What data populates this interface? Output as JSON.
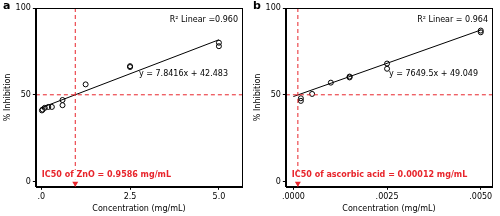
{
  "chart_data": [
    {
      "type": "scatter",
      "panel_label": "a",
      "x_label": "Concentration (mg/mL)",
      "y_label": "% Inhibition",
      "xlim": [
        -0.15,
        5.65
      ],
      "ylim": [
        -3,
        100
      ],
      "xticks": [
        {
          "value": 0,
          "label": ".0"
        },
        {
          "value": 2.5,
          "label": "2.5"
        },
        {
          "value": 5,
          "label": "5.0"
        }
      ],
      "yticks": [
        0,
        50,
        100
      ],
      "grid": false,
      "series": [
        {
          "type": "scatter",
          "marker": "circle",
          "color": "#000000",
          "x": [
            0.02,
            0.04,
            0.1,
            0.2,
            0.3,
            0.6,
            0.6,
            1.25,
            2.5,
            2.5,
            5,
            5
          ],
          "values": [
            41,
            41.5,
            42.5,
            43,
            43,
            44,
            47,
            56,
            66,
            66.5,
            78,
            80
          ]
        },
        {
          "type": "line",
          "line_style": "solid",
          "color": "#000000",
          "x": [
            0,
            5
          ],
          "values": [
            42.5,
            81.7
          ]
        }
      ],
      "reference_lines": [
        {
          "axis": "y",
          "value": 50,
          "color": "#e8242b",
          "line_style": "dashed"
        },
        {
          "axis": "x",
          "value": 0.9586,
          "color": "#e8242b",
          "line_style": "dashed"
        }
      ],
      "annotations": [
        {
          "text": "R² Linear =0.960",
          "color": "#000000"
        },
        {
          "text": "y = 7.8416x + 42.483",
          "color": "#000000"
        },
        {
          "text": "IC50 of ZnO = 0.9586 mg/mL",
          "color": "#e8242b"
        }
      ]
    },
    {
      "type": "scatter",
      "panel_label": "b",
      "x_label": "Concentration (mg/mL)",
      "y_label": "% Inhibition",
      "xlim": [
        -0.0002,
        0.0053
      ],
      "ylim": [
        -3,
        100
      ],
      "xticks": [
        {
          "value": 0,
          "label": ".0000"
        },
        {
          "value": 0.0025,
          "label": ".0025"
        },
        {
          "value": 0.005,
          "label": ".0050"
        }
      ],
      "yticks": [
        0,
        50,
        100
      ],
      "grid": false,
      "series": [
        {
          "type": "scatter",
          "marker": "circle",
          "color": "#000000",
          "x": [
            0.0002,
            0.0002,
            0.0005,
            0.001,
            0.0015,
            0.0015,
            0.0025,
            0.0025,
            0.005,
            0.005
          ],
          "values": [
            46.5,
            48,
            50.5,
            57,
            60,
            60.5,
            65,
            68,
            86,
            87
          ]
        },
        {
          "type": "line",
          "line_style": "solid",
          "color": "#000000",
          "x": [
            0,
            0.005
          ],
          "values": [
            49.0,
            87.3
          ]
        }
      ],
      "reference_lines": [
        {
          "axis": "y",
          "value": 50,
          "color": "#e8242b",
          "line_style": "dashed"
        },
        {
          "axis": "x",
          "value": 0.00012,
          "color": "#e8242b",
          "line_style": "dashed"
        }
      ],
      "annotations": [
        {
          "text": "R² Linear = 0.964",
          "color": "#000000"
        },
        {
          "text": "y = 7649.5x + 49.049",
          "color": "#000000"
        },
        {
          "text": "IC50 of ascorbic acid = 0.00012 mg/mL",
          "color": "#e8242b"
        }
      ]
    }
  ]
}
